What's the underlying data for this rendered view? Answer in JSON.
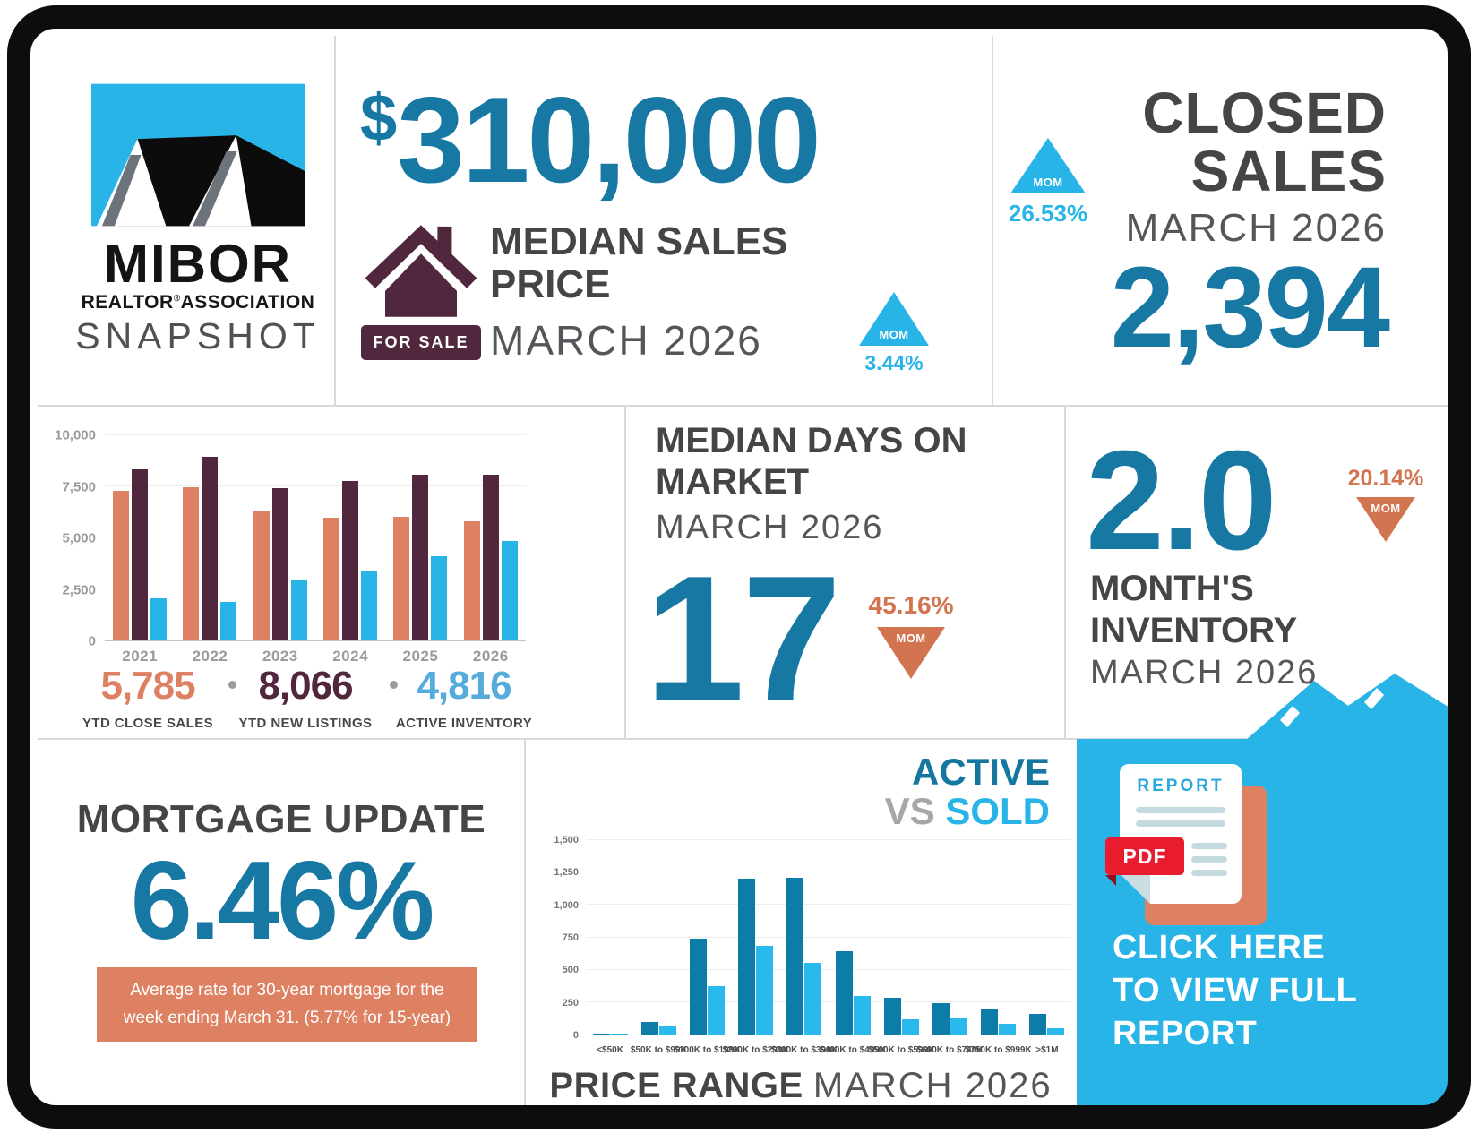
{
  "colors": {
    "primary_blue": "#1778a3",
    "light_blue": "#29b4e8",
    "orange": "#dd8162",
    "orange_deep": "#d2744f",
    "plum": "#51273d",
    "dark_text": "#454548",
    "light_text": "#56565a",
    "red": "#e81c2e"
  },
  "logo": {
    "brand": "MIBOR",
    "subbrand_pre": "REALTOR",
    "subbrand_reg": "®",
    "subbrand_post": "ASSOCIATION",
    "title": "SNAPSHOT"
  },
  "median_price": {
    "currency": "$",
    "amount": "310,000",
    "label_line1": "MEDIAN SALES",
    "label_line2": "PRICE",
    "period": "MARCH 2026",
    "sign_label": "FOR SALE",
    "mom_label": "MOM",
    "mom_value": "3.44%",
    "mom_direction": "up"
  },
  "closed_sales": {
    "title_line1": "CLOSED",
    "title_line2": "SALES",
    "period": "MARCH 2026",
    "value": "2,394",
    "mom_label": "MOM",
    "mom_value": "26.53%",
    "mom_direction": "up"
  },
  "ytd": {
    "stats": [
      {
        "value": "5,785",
        "label": "YTD CLOSE SALES"
      },
      {
        "value": "8,066",
        "label": "YTD NEW LISTINGS"
      },
      {
        "value": "4,816",
        "label": "ACTIVE INVENTORY"
      }
    ]
  },
  "days_on_market": {
    "title_line1": "MEDIAN DAYS ON",
    "title_line2": "MARKET",
    "period": "MARCH 2026",
    "value": "17",
    "mom_label": "MOM",
    "mom_value": "45.16%",
    "mom_direction": "down"
  },
  "months_inventory": {
    "value": "2.0",
    "label_line1": "MONTH'S",
    "label_line2": "INVENTORY",
    "period": "MARCH 2026",
    "mom_label": "MOM",
    "mom_value": "20.14%",
    "mom_direction": "down"
  },
  "mortgage": {
    "title": "MORTGAGE UPDATE",
    "rate": "6.46%",
    "note_line1": "Average rate for 30-year mortgage for the",
    "note_line2": "week ending March 31. (5.77% for 15-year)"
  },
  "price_range": {
    "title_active": "ACTIVE",
    "title_vs": "VS",
    "title_sold": "SOLD",
    "footer_bold": "PRICE RANGE",
    "footer_period": "MARCH 2026"
  },
  "report": {
    "doc_title": "REPORT",
    "badge": "PDF",
    "cta_line1": "CLICK HERE",
    "cta_line2": "TO VIEW FULL",
    "cta_line3": "REPORT"
  },
  "chart_data": [
    {
      "type": "bar",
      "name": "ytd-history",
      "categories": [
        "2021",
        "2022",
        "2023",
        "2024",
        "2025",
        "2026"
      ],
      "series": [
        {
          "name": "YTD CLOSE SALES",
          "color": "#dd8162",
          "values": [
            7300,
            7450,
            6300,
            5980,
            6000,
            5785
          ]
        },
        {
          "name": "YTD NEW LISTINGS",
          "color": "#51273d",
          "values": [
            8350,
            8950,
            7400,
            7780,
            8060,
            8066
          ]
        },
        {
          "name": "ACTIVE INVENTORY",
          "color": "#29b4e8",
          "values": [
            2000,
            1850,
            2880,
            3340,
            4060,
            4816
          ]
        }
      ],
      "ylim": [
        0,
        10000
      ],
      "yticks": [
        0,
        2500,
        5000,
        7500,
        10000
      ],
      "grid": true,
      "legend_position": "below"
    },
    {
      "type": "bar",
      "name": "active-vs-sold",
      "title": "ACTIVE VS SOLD",
      "xlabel": "PRICE RANGE MARCH 2026",
      "categories": [
        "<$50K",
        "$50K to $99K",
        "$100K to $199K",
        "$200K to $299K",
        "$300K to $399K",
        "$400K to $499K",
        "$500K to $599K",
        "$600K to $749K",
        "$750K to $999K",
        ">$1M"
      ],
      "series": [
        {
          "name": "ACTIVE",
          "color": "#0e7ca8",
          "values": [
            10,
            100,
            740,
            1200,
            1210,
            645,
            285,
            245,
            195,
            160
          ]
        },
        {
          "name": "SOLD",
          "color": "#29b9ec",
          "values": [
            8,
            60,
            375,
            685,
            555,
            300,
            115,
            125,
            80,
            50
          ]
        }
      ],
      "ylim": [
        0,
        1500
      ],
      "yticks": [
        0,
        250,
        500,
        750,
        1000,
        1250,
        1500
      ],
      "grid": true
    }
  ]
}
